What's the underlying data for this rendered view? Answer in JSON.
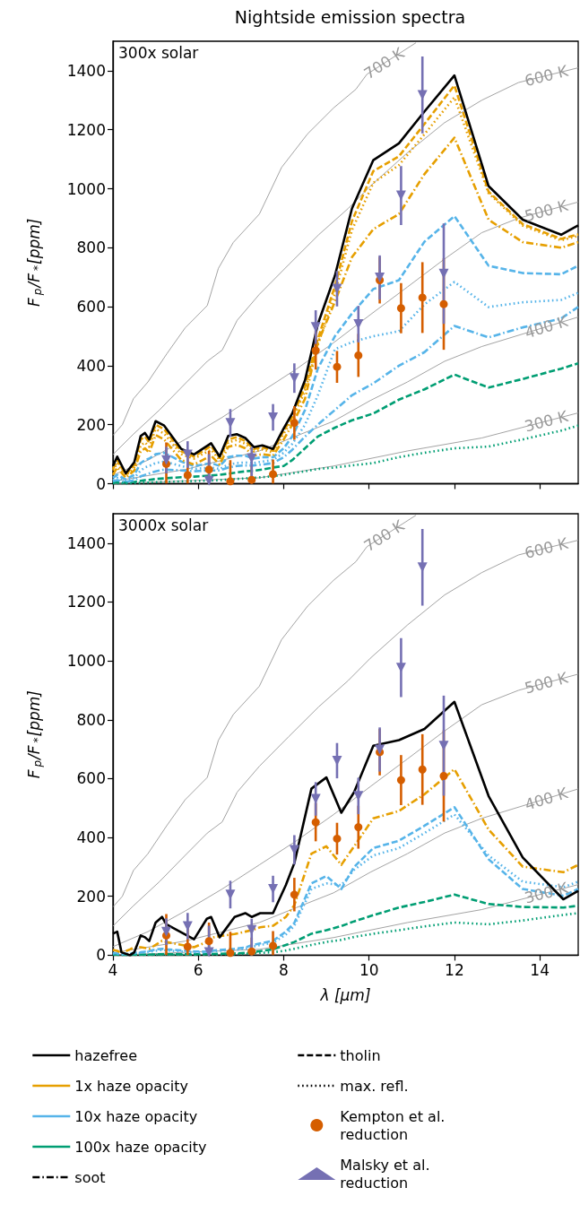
{
  "chart_data": [
    {
      "type": "line",
      "title": "Nightside emission spectra",
      "ylabel": "F$_{p}$/F$_{*}$[ppm]",
      "annotations": [
        "300x solar"
      ],
      "x": [
        4.0,
        4.1,
        4.3,
        4.5,
        4.65,
        4.75,
        4.85,
        5.0,
        5.2,
        5.6,
        5.9,
        6.3,
        6.5,
        6.7,
        6.9,
        7.1,
        7.3,
        7.5,
        7.75,
        8.0,
        8.2,
        8.5,
        8.8,
        9.2,
        9.6,
        10.1,
        10.7,
        11.3,
        12.0,
        12.8,
        13.6,
        14.5,
        14.9
      ],
      "xlim": [
        4,
        14.9
      ],
      "xticks": [
        4,
        6,
        8,
        10,
        12,
        14
      ],
      "ylim": [
        0,
        1500
      ],
      "yticks": [
        0,
        200,
        400,
        600,
        800,
        1000,
        1200,
        1400
      ],
      "tick_labels": "y",
      "series": [
        {
          "name": "700 K",
          "color": "#999999",
          "x": [
            4,
            4.22,
            4.48,
            4.82,
            5.26,
            5.69,
            6.21,
            6.47,
            6.82,
            7.43,
            7.95,
            8.56,
            9.17,
            9.69,
            9.95,
            11.1
          ],
          "values": [
            164,
            200,
            288,
            345,
            440,
            528,
            604,
            730,
            818,
            914,
            1072,
            1186,
            1274,
            1337,
            1388,
            1495
          ]
        },
        {
          "name": "600 K",
          "color": "#999999",
          "x": [
            4,
            4.48,
            5.09,
            5.69,
            6.21,
            6.56,
            6.91,
            7.43,
            8.12,
            8.82,
            9.51,
            10.03,
            10.9,
            11.77,
            12.64,
            13.5,
            14.9
          ],
          "values": [
            99,
            168,
            250,
            339,
            415,
            453,
            554,
            642,
            743,
            844,
            933,
            1009,
            1122,
            1224,
            1300,
            1360,
            1410
          ]
        },
        {
          "name": "500 K",
          "color": "#999999",
          "x": [
            4,
            4.82,
            5.69,
            6.56,
            7.43,
            8.3,
            9.17,
            10.03,
            10.9,
            11.77,
            12.64,
            13.5,
            14.9
          ],
          "values": [
            29,
            80,
            150,
            225,
            307,
            389,
            478,
            573,
            667,
            762,
            851,
            900,
            955
          ]
        },
        {
          "name": "400 K",
          "color": "#999999",
          "x": [
            4,
            5.69,
            7.43,
            8.3,
            9.17,
            10.03,
            10.9,
            11.77,
            12.64,
            14.9
          ],
          "values": [
            8,
            48,
            111,
            162,
            212,
            282,
            345,
            415,
            465,
            565
          ]
        },
        {
          "name": "300 K",
          "color": "#999999",
          "x": [
            4,
            7.43,
            9.17,
            10.9,
            12.64,
            14.9
          ],
          "values": [
            0,
            20,
            60,
            111,
            155,
            240
          ]
        },
        {
          "color": "#009e73",
          "line_style": "dotted",
          "values": [
            1,
            2,
            1,
            2,
            3,
            4,
            4,
            5,
            6,
            8,
            9,
            11,
            12,
            14,
            16,
            18,
            20,
            22,
            25,
            30,
            35,
            42,
            50,
            55,
            62,
            70,
            90,
            105,
            120,
            126,
            150,
            180,
            197
          ]
        },
        {
          "color": "#009e73",
          "line_style": "dashed",
          "values": [
            3,
            5,
            4,
            6,
            10,
            12,
            13,
            16,
            18,
            22,
            24,
            28,
            30,
            34,
            38,
            42,
            44,
            48,
            55,
            60,
            80,
            120,
            160,
            190,
            215,
            238,
            285,
            320,
            370,
            326,
            355,
            390,
            408
          ]
        },
        {
          "color": "#56b4e9",
          "line_style": "dashdot",
          "values": [
            8,
            12,
            6,
            12,
            25,
            30,
            35,
            42,
            48,
            45,
            42,
            45,
            45,
            55,
            60,
            62,
            62,
            65,
            70,
            90,
            115,
            160,
            200,
            250,
            300,
            340,
            400,
            446,
            535,
            496,
            530,
            560,
            599
          ]
        },
        {
          "color": "#56b4e9",
          "line_style": "dotted",
          "values": [
            12,
            20,
            10,
            20,
            45,
            55,
            60,
            70,
            75,
            60,
            50,
            55,
            50,
            65,
            70,
            72,
            70,
            75,
            80,
            105,
            135,
            200,
            300,
            456,
            480,
            500,
            517,
            608,
            684,
            599,
            615,
            623,
            647
          ]
        },
        {
          "color": "#56b4e9",
          "line_style": "dashed",
          "values": [
            20,
            30,
            15,
            30,
            70,
            80,
            85,
            100,
            105,
            75,
            60,
            70,
            60,
            90,
            95,
            95,
            85,
            90,
            90,
            120,
            160,
            250,
            390,
            500,
            577,
            660,
            690,
            821,
            907,
            739,
            714,
            710,
            739
          ]
        },
        {
          "color": "#e69f00",
          "line_style": "dashdot",
          "values": [
            30,
            55,
            20,
            45,
            110,
            120,
            105,
            165,
            150,
            80,
            65,
            95,
            65,
            125,
            132,
            120,
            95,
            100,
            95,
            150,
            200,
            288,
            478,
            617,
            768,
            863,
            914,
            1050,
            1173,
            895,
            819,
            800,
            819
          ]
        },
        {
          "color": "#e69f00",
          "line_style": "dotted",
          "values": [
            45,
            70,
            28,
            55,
            130,
            140,
            125,
            185,
            170,
            100,
            85,
            115,
            80,
            140,
            148,
            135,
            110,
            116,
            106,
            170,
            215,
            315,
            470,
            645,
            860,
            1020,
            1080,
            1185,
            1310,
            985,
            875,
            825,
            840
          ]
        },
        {
          "color": "#e69f00",
          "line_style": "dashed",
          "values": [
            50,
            80,
            30,
            65,
            150,
            160,
            140,
            200,
            185,
            110,
            92,
            128,
            88,
            150,
            158,
            145,
            118,
            124,
            112,
            180,
            225,
            330,
            490,
            670,
            890,
            1060,
            1110,
            1220,
            1350,
            990,
            880,
            830,
            845
          ]
        },
        {
          "color": "#000000",
          "line_style": "solid",
          "values": [
            60,
            92,
            35,
            73,
            162,
            172,
            150,
            212,
            197,
            118,
            99,
            137,
            92,
            162,
            168,
            155,
            124,
            130,
            118,
            187,
            238,
            351,
            541,
            705,
            933,
            1097,
            1154,
            1262,
            1384,
            1009,
            895,
            844,
            876
          ]
        },
        {
          "type": "scatter",
          "color": "#d55e00",
          "marker": "circle",
          "x": [
            5.25,
            5.75,
            6.25,
            6.75,
            7.25,
            7.75,
            8.25,
            8.75,
            9.25,
            9.75,
            10.25,
            10.75,
            11.25,
            11.75
          ],
          "values": [
            67,
            29,
            48,
            8,
            13,
            32,
            206,
            452,
            396,
            435,
            690,
            595,
            631,
            609
          ],
          "errors": [
            [
              0,
              140
            ],
            [
              0,
              92
            ],
            [
              0,
              111
            ],
            [
              0,
              80
            ],
            [
              0,
              60
            ],
            [
              0,
              82
            ],
            57,
            65,
            54,
            73,
            79,
            85,
            120,
            155
          ]
        },
        {
          "type": "scatter",
          "color": "#7570b3",
          "marker": "triangle",
          "x": [
            5.25,
            5.75,
            6.25,
            6.75,
            7.25,
            7.75,
            8.25,
            8.75,
            9.25,
            9.75,
            10.25,
            10.75,
            11.25,
            11.75
          ],
          "values": [
            80,
            99,
            10,
            206,
            86,
            225,
            358,
            531,
            661,
            541,
            699,
            977,
            1318,
            712
          ],
          "errors": [
            45,
            45,
            [
              0,
              100
            ],
            47,
            [
              0,
              124
            ],
            45,
            50,
            57,
            60,
            62,
            75,
            100,
            130,
            170
          ]
        }
      ]
    },
    {
      "type": "line",
      "xlabel": "λ [μm]",
      "ylabel": "F$_{p}$/F$_{*}$[ppm]",
      "legend": "bottom",
      "annotations": [
        "3000x solar"
      ],
      "x": [
        4.0,
        4.1,
        4.2,
        4.4,
        4.5,
        4.65,
        4.75,
        4.85,
        5.0,
        5.15,
        5.25,
        5.9,
        6.2,
        6.3,
        6.5,
        6.85,
        7.1,
        7.25,
        7.45,
        7.75,
        8.05,
        8.25,
        8.65,
        9.0,
        9.35,
        9.65,
        10.1,
        10.7,
        11.3,
        12.0,
        12.8,
        13.6,
        14.55,
        14.9
      ],
      "xlim": [
        4,
        14.9
      ],
      "xticks": [
        4,
        6,
        8,
        10,
        12,
        14
      ],
      "ylim": [
        0,
        1500
      ],
      "yticks": [
        0,
        200,
        400,
        600,
        800,
        1000,
        1200,
        1400
      ],
      "series": [
        {
          "name": "700 K",
          "color": "#999999",
          "x": [
            4,
            4.22,
            4.48,
            4.82,
            5.26,
            5.69,
            6.21,
            6.47,
            6.82,
            7.43,
            7.95,
            8.56,
            9.17,
            9.69,
            9.95,
            11.1
          ],
          "values": [
            164,
            200,
            288,
            345,
            440,
            528,
            604,
            730,
            818,
            914,
            1072,
            1186,
            1274,
            1337,
            1388,
            1495
          ]
        },
        {
          "name": "600 K",
          "color": "#999999",
          "x": [
            4,
            4.48,
            5.09,
            5.69,
            6.21,
            6.56,
            6.91,
            7.43,
            8.12,
            8.82,
            9.51,
            10.03,
            10.9,
            11.77,
            12.64,
            13.5,
            14.9
          ],
          "values": [
            99,
            168,
            250,
            339,
            415,
            453,
            554,
            642,
            743,
            844,
            933,
            1009,
            1122,
            1224,
            1300,
            1360,
            1410
          ]
        },
        {
          "name": "500 K",
          "color": "#999999",
          "x": [
            4,
            4.82,
            5.69,
            6.56,
            7.43,
            8.3,
            9.17,
            10.03,
            10.9,
            11.77,
            12.64,
            13.5,
            14.9
          ],
          "values": [
            29,
            80,
            150,
            225,
            307,
            389,
            478,
            573,
            667,
            762,
            851,
            900,
            955
          ]
        },
        {
          "name": "400 K",
          "color": "#999999",
          "x": [
            4,
            5.69,
            7.43,
            8.3,
            9.17,
            10.03,
            10.9,
            11.77,
            12.64,
            14.9
          ],
          "values": [
            8,
            48,
            111,
            162,
            212,
            282,
            345,
            415,
            465,
            565
          ]
        },
        {
          "name": "300 K",
          "color": "#999999",
          "x": [
            4,
            7.43,
            9.17,
            10.9,
            12.64,
            14.9
          ],
          "values": [
            0,
            20,
            60,
            111,
            155,
            240
          ]
        },
        {
          "color": "#009e73",
          "line_style": "dotted",
          "values": [
            1,
            1,
            1,
            1,
            1,
            1,
            1,
            1,
            1,
            2,
            2,
            2,
            3,
            3,
            3,
            4,
            5,
            6,
            8,
            10,
            16,
            22,
            35,
            45,
            52,
            62,
            73,
            85,
            98,
            111,
            105,
            118,
            137,
            143
          ]
        },
        {
          "color": "#009e73",
          "line_style": "dashed",
          "values": [
            2,
            2,
            1,
            1,
            2,
            2,
            2,
            2,
            3,
            3,
            3,
            3,
            4,
            4,
            5,
            6,
            8,
            10,
            14,
            20,
            35,
            45,
            73,
            85,
            99,
            115,
            136,
            162,
            181,
            206,
            174,
            164,
            162,
            168
          ]
        },
        {
          "color": "#56b4e9",
          "line_style": "dotted",
          "values": [
            6,
            5,
            3,
            4,
            6,
            8,
            10,
            12,
            15,
            18,
            16,
            10,
            10,
            12,
            15,
            18,
            22,
            28,
            35,
            42,
            70,
            100,
            225,
            244,
            238,
            290,
            339,
            364,
            415,
            478,
            339,
            250,
            231,
            250
          ]
        },
        {
          "color": "#56b4e9",
          "line_style": "dashed",
          "values": [
            8,
            6,
            4,
            5,
            8,
            10,
            12,
            14,
            20,
            22,
            20,
            13,
            12,
            15,
            18,
            22,
            26,
            34,
            40,
            49,
            80,
            110,
            244,
            269,
            225,
            300,
            364,
            389,
            440,
            503,
            326,
            225,
            202,
            225
          ]
        },
        {
          "color": "#e69f00",
          "line_style": "dashdot",
          "values": [
            18,
            15,
            8,
            20,
            27,
            27,
            25,
            22,
            35,
            49,
            45,
            27,
            45,
            59,
            65,
            72,
            80,
            85,
            95,
            100,
            130,
            170,
            345,
            370,
            307,
            370,
            465,
            490,
            547,
            632,
            427,
            301,
            282,
            307
          ]
        },
        {
          "name": "hazefree",
          "color": "#000000",
          "line_style": "solid",
          "values": [
            73,
            80,
            10,
            0,
            10,
            67,
            61,
            48,
            111,
            130,
            105,
            54,
            124,
            130,
            61,
            130,
            143,
            130,
            143,
            143,
            238,
            313,
            566,
            604,
            484,
            554,
            712,
            731,
            769,
            861,
            541,
            332,
            190,
            219
          ]
        },
        {
          "name": "1x haze opacity",
          "color": "#e69f00",
          "line_style": "solid",
          "values": [
            null,
            null,
            null,
            null,
            null,
            null,
            null,
            null,
            null,
            null,
            null,
            null,
            null,
            null,
            null,
            null,
            null,
            null,
            null,
            null,
            null,
            null,
            null,
            null,
            null,
            null,
            null,
            null,
            null,
            null,
            null,
            null,
            null,
            null
          ]
        },
        {
          "name": "10x haze opacity",
          "color": "#56b4e9",
          "line_style": "solid",
          "values": [
            null,
            null,
            null,
            null,
            null,
            null,
            null,
            null,
            null,
            null,
            null,
            null,
            null,
            null,
            null,
            null,
            null,
            null,
            null,
            null,
            null,
            null,
            null,
            null,
            null,
            null,
            null,
            null,
            null,
            null,
            null,
            null,
            null,
            null
          ]
        },
        {
          "name": "100x haze opacity",
          "color": "#009e73",
          "line_style": "solid",
          "values": [
            null,
            null,
            null,
            null,
            null,
            null,
            null,
            null,
            null,
            null,
            null,
            null,
            null,
            null,
            null,
            null,
            null,
            null,
            null,
            null,
            null,
            null,
            null,
            null,
            null,
            null,
            null,
            null,
            null,
            null,
            null,
            null,
            null,
            null
          ]
        },
        {
          "name": "soot",
          "color": "#000000",
          "line_style": "dashdot",
          "values": [
            null,
            null,
            null,
            null,
            null,
            null,
            null,
            null,
            null,
            null,
            null,
            null,
            null,
            null,
            null,
            null,
            null,
            null,
            null,
            null,
            null,
            null,
            null,
            null,
            null,
            null,
            null,
            null,
            null,
            null,
            null,
            null,
            null,
            null
          ]
        },
        {
          "name": "tholin",
          "color": "#000000",
          "line_style": "dashed",
          "values": [
            null,
            null,
            null,
            null,
            null,
            null,
            null,
            null,
            null,
            null,
            null,
            null,
            null,
            null,
            null,
            null,
            null,
            null,
            null,
            null,
            null,
            null,
            null,
            null,
            null,
            null,
            null,
            null,
            null,
            null,
            null,
            null,
            null,
            null
          ]
        },
        {
          "name": "max. refl.",
          "color": "#000000",
          "line_style": "dotted",
          "values": [
            null,
            null,
            null,
            null,
            null,
            null,
            null,
            null,
            null,
            null,
            null,
            null,
            null,
            null,
            null,
            null,
            null,
            null,
            null,
            null,
            null,
            null,
            null,
            null,
            null,
            null,
            null,
            null,
            null,
            null,
            null,
            null,
            null,
            null
          ]
        },
        {
          "name": "Kempton et al. reduction",
          "type": "scatter",
          "color": "#d55e00",
          "marker": "circle",
          "x": [
            5.25,
            5.75,
            6.25,
            6.75,
            7.25,
            7.75,
            8.25,
            8.75,
            9.25,
            9.75,
            10.25,
            10.75,
            11.25,
            11.75
          ],
          "values": [
            67,
            29,
            48,
            8,
            13,
            32,
            206,
            452,
            396,
            435,
            690,
            595,
            631,
            609
          ],
          "errors": [
            [
              0,
              140
            ],
            [
              0,
              92
            ],
            [
              0,
              111
            ],
            [
              0,
              80
            ],
            [
              0,
              60
            ],
            [
              0,
              82
            ],
            57,
            65,
            54,
            73,
            79,
            85,
            120,
            155
          ]
        },
        {
          "name": "Malsky et al. reduction",
          "type": "scatter",
          "color": "#7570b3",
          "marker": "triangle",
          "x": [
            5.25,
            5.75,
            6.25,
            6.75,
            7.25,
            7.75,
            8.25,
            8.75,
            9.25,
            9.75,
            10.25,
            10.75,
            11.25,
            11.75
          ],
          "values": [
            80,
            99,
            10,
            206,
            86,
            225,
            358,
            531,
            661,
            541,
            699,
            977,
            1318,
            712
          ],
          "errors": [
            45,
            45,
            [
              0,
              100
            ],
            47,
            [
              0,
              124
            ],
            45,
            50,
            57,
            60,
            62,
            75,
            100,
            130,
            170
          ]
        }
      ]
    }
  ]
}
